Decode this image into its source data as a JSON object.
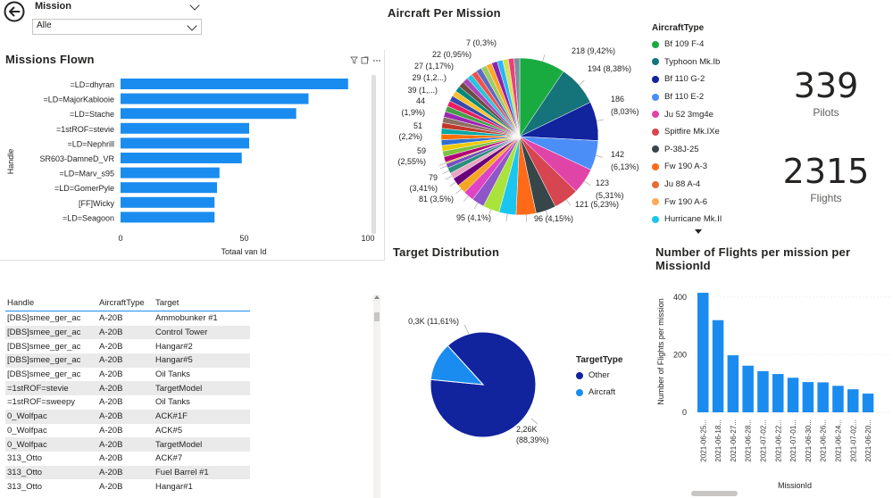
{
  "slicer": {
    "label": "Mission",
    "value": "Alle"
  },
  "missions_flown": {
    "title": "Missions Flown",
    "y_title": "Handle",
    "x_title": "Totaal van Id",
    "header_icons": [
      "filter-icon",
      "focus-icon",
      "more-icon"
    ]
  },
  "aircraft_per_mission": {
    "title": "Aircraft Per Mission"
  },
  "legend": {
    "title": "AircraftType",
    "items": [
      {
        "name": "Bf 109 F-4",
        "color": "#1aab40"
      },
      {
        "name": "Typhoon Mk.Ib",
        "color": "#14747a"
      },
      {
        "name": "Bf 110 G-2",
        "color": "#12239e"
      },
      {
        "name": "Bf 110 E-2",
        "color": "#4c8ef7"
      },
      {
        "name": "Ju 52 3mg4e",
        "color": "#e044a7"
      },
      {
        "name": "Spitfire Mk.IXe",
        "color": "#d64550"
      },
      {
        "name": "P-38J-25",
        "color": "#374649"
      },
      {
        "name": "Fw 190 A-3",
        "color": "#fe6a18"
      },
      {
        "name": "Ju 88 A-4",
        "color": "#e66c37"
      },
      {
        "name": "Fw 190 A-6",
        "color": "#fdab57"
      },
      {
        "name": "Hurricane Mk.II",
        "color": "#1ac6f0"
      }
    ]
  },
  "kpis": [
    {
      "value": "339",
      "label": "Pilots"
    },
    {
      "value": "2315",
      "label": "Flights"
    }
  ],
  "table": {
    "headers": [
      "Handle",
      "AircraftType",
      "Target"
    ],
    "rows": [
      [
        "[DBS]smee_ger_ac",
        "A-20B",
        "Ammobunker #1"
      ],
      [
        "[DBS]smee_ger_ac",
        "A-20B",
        "Control Tower"
      ],
      [
        "[DBS]smee_ger_ac",
        "A-20B",
        "Hangar#2"
      ],
      [
        "[DBS]smee_ger_ac",
        "A-20B",
        "Hangar#5"
      ],
      [
        "[DBS]smee_ger_ac",
        "A-20B",
        "Oil Tanks"
      ],
      [
        "=1stROF=stevie",
        "A-20B",
        "TargetModel"
      ],
      [
        "=1stROF=sweepy",
        "A-20B",
        "Oil Tanks"
      ],
      [
        "0_Wolfpac",
        "A-20B",
        "ACK#1F"
      ],
      [
        "0_Wolfpac",
        "A-20B",
        "ACK#5"
      ],
      [
        "0_Wolfpac",
        "A-20B",
        "TargetModel"
      ],
      [
        "313_Otto",
        "A-20B",
        "ACK#7"
      ],
      [
        "313_Otto",
        "A-20B",
        "Fuel Barrel #1"
      ],
      [
        "313_Otto",
        "A-20B",
        "Hangar#1"
      ]
    ]
  },
  "target_distribution": {
    "title": "Target Distribution",
    "legend_title": "TargetType",
    "legend": [
      {
        "name": "Other",
        "color": "#12239e"
      },
      {
        "name": "Aircraft",
        "color": "#1a8cf0"
      }
    ]
  },
  "flights_per_mission": {
    "title": "Number of Flights per mission per MissionId",
    "y_title": "Number of Flights per mission",
    "x_title": "MissionId"
  },
  "chart_data": [
    {
      "type": "bar",
      "orientation": "horizontal",
      "title": "Missions Flown",
      "xlabel": "Totaal van Id",
      "ylabel": "Handle",
      "categories": [
        "=LD=dhyran",
        "=LD=MajorKablooie",
        "=LD=Stache",
        "=1stROF=stevie",
        "=LD=Nephrill",
        "SR603-DamneD_VR",
        "=LD=Marv_s95",
        "=LD=GomerPyle",
        "[FF]Wicky",
        "=LD=Seagoon"
      ],
      "values": [
        92,
        76,
        71,
        52,
        52,
        49,
        40,
        39,
        38,
        38
      ],
      "xlim": [
        0,
        100
      ],
      "xticks": [
        0,
        50,
        100
      ],
      "color": "#1a8cf0"
    },
    {
      "type": "pie",
      "title": "Aircraft Per Mission",
      "values": [
        218,
        194,
        186,
        142,
        123,
        121,
        96,
        95,
        81,
        79,
        59,
        51,
        44,
        39,
        29,
        27,
        22,
        7
      ],
      "labels": [
        "218 (9,42%)",
        "194 (8,38%)",
        "186 (8,03%)",
        "142 (6,13%)",
        "123 (5,31%)",
        "121 (5,23%)",
        "96 (4,15%)",
        "95 (4,1%)",
        "81 (3,5%)",
        "79 (3,41%)",
        "59 (2,55%)",
        "51 (2,2%)",
        "44 (1,9%)",
        "39 (1,...)",
        "29 (1,2...)",
        "27 (1,17%)",
        "22 (0,95%)",
        "7 (0,3%)"
      ],
      "other_small_slices": 26,
      "colors": [
        "#1aab40",
        "#14747a",
        "#12239e",
        "#4c8ef7",
        "#e044a7",
        "#d64550",
        "#374649",
        "#fe6a18",
        "#1ac6f0",
        "#a9e33b",
        "#8e56c9",
        "#e043c3",
        "#f5a623",
        "#6b007b",
        "#e8a5c4",
        "#2a8f7a",
        "#744ec2",
        "#d9b300"
      ]
    },
    {
      "type": "pie",
      "title": "Target Distribution",
      "values": [
        2260,
        300
      ],
      "labels": [
        "2,26K (88,39%)",
        "0,3K (11,61%)"
      ],
      "categories": [
        "Other",
        "Aircraft"
      ],
      "colors": [
        "#12239e",
        "#1a8cf0"
      ]
    },
    {
      "type": "bar",
      "title": "Number of Flights per mission per MissionId",
      "xlabel": "MissionId",
      "ylabel": "Number of Flights per mission",
      "categories": [
        "2021-06-25...",
        "2021-06-18...",
        "2021-06-27...",
        "2021-06-28...",
        "2021-07-02...",
        "2021-06-22...",
        "2021-07-01...",
        "2021-06-30...",
        "2021-06-26...",
        "2021-06-24...",
        "2021-07-02...",
        "2021-06-20..."
      ],
      "values": [
        415,
        320,
        198,
        162,
        143,
        133,
        120,
        105,
        104,
        92,
        80,
        65
      ],
      "ylim": [
        0,
        440
      ],
      "yticks": [
        0,
        200,
        400
      ],
      "color": "#1a8cf0"
    }
  ]
}
